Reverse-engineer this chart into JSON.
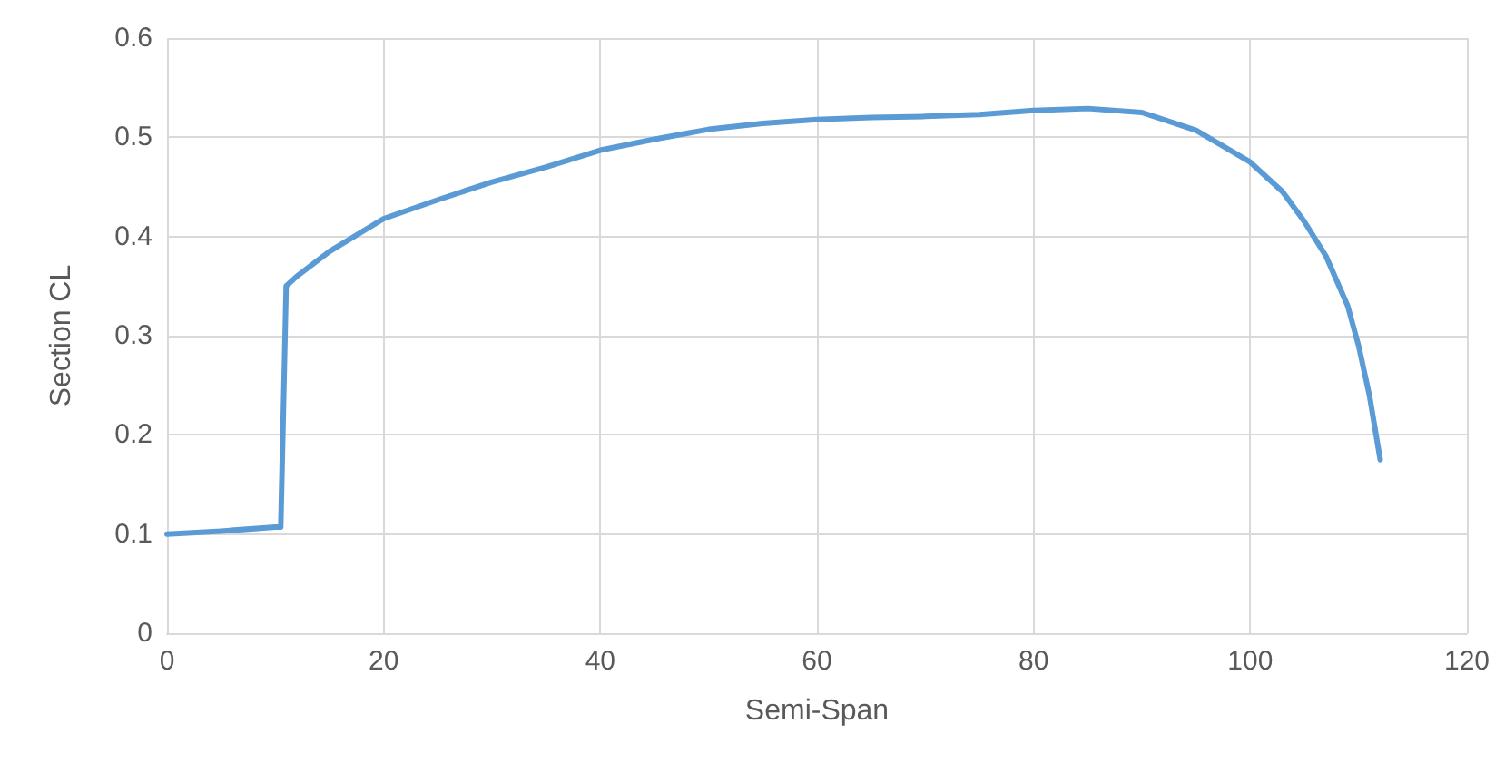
{
  "chart_data": {
    "type": "line",
    "xlabel": "Semi-Span",
    "ylabel": "Section CL",
    "x": [
      0,
      5,
      10,
      10.5,
      11,
      12,
      15,
      20,
      25,
      30,
      35,
      40,
      45,
      50,
      55,
      60,
      65,
      70,
      75,
      80,
      85,
      90,
      95,
      100,
      103,
      105,
      107,
      109,
      110,
      111,
      112
    ],
    "series": [
      {
        "color": "#5b9bd5",
        "values": [
          0.1,
          0.103,
          0.107,
          0.107,
          0.35,
          0.36,
          0.385,
          0.418,
          0.437,
          0.455,
          0.47,
          0.487,
          0.498,
          0.508,
          0.514,
          0.518,
          0.52,
          0.521,
          0.523,
          0.527,
          0.529,
          0.525,
          0.507,
          0.475,
          0.445,
          0.415,
          0.38,
          0.33,
          0.29,
          0.24,
          0.175
        ]
      }
    ],
    "xlim": [
      0,
      120
    ],
    "xticks": [
      0,
      20,
      40,
      60,
      80,
      100,
      120
    ],
    "ylim": [
      0,
      0.6
    ],
    "yticks": [
      0,
      0.1,
      0.2,
      0.3,
      0.4,
      0.5,
      0.6
    ],
    "grid": true
  }
}
